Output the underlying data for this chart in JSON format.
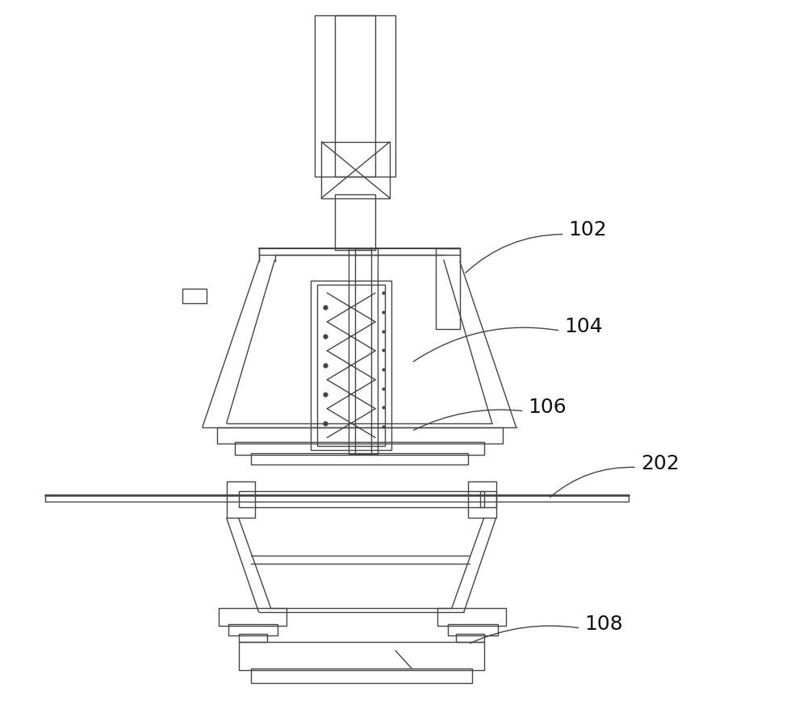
{
  "bg_color": "#ffffff",
  "lc": "#444444",
  "lw": 1.0,
  "label_fontsize": 18,
  "labels": [
    "102",
    "104",
    "106",
    "202",
    "108"
  ]
}
